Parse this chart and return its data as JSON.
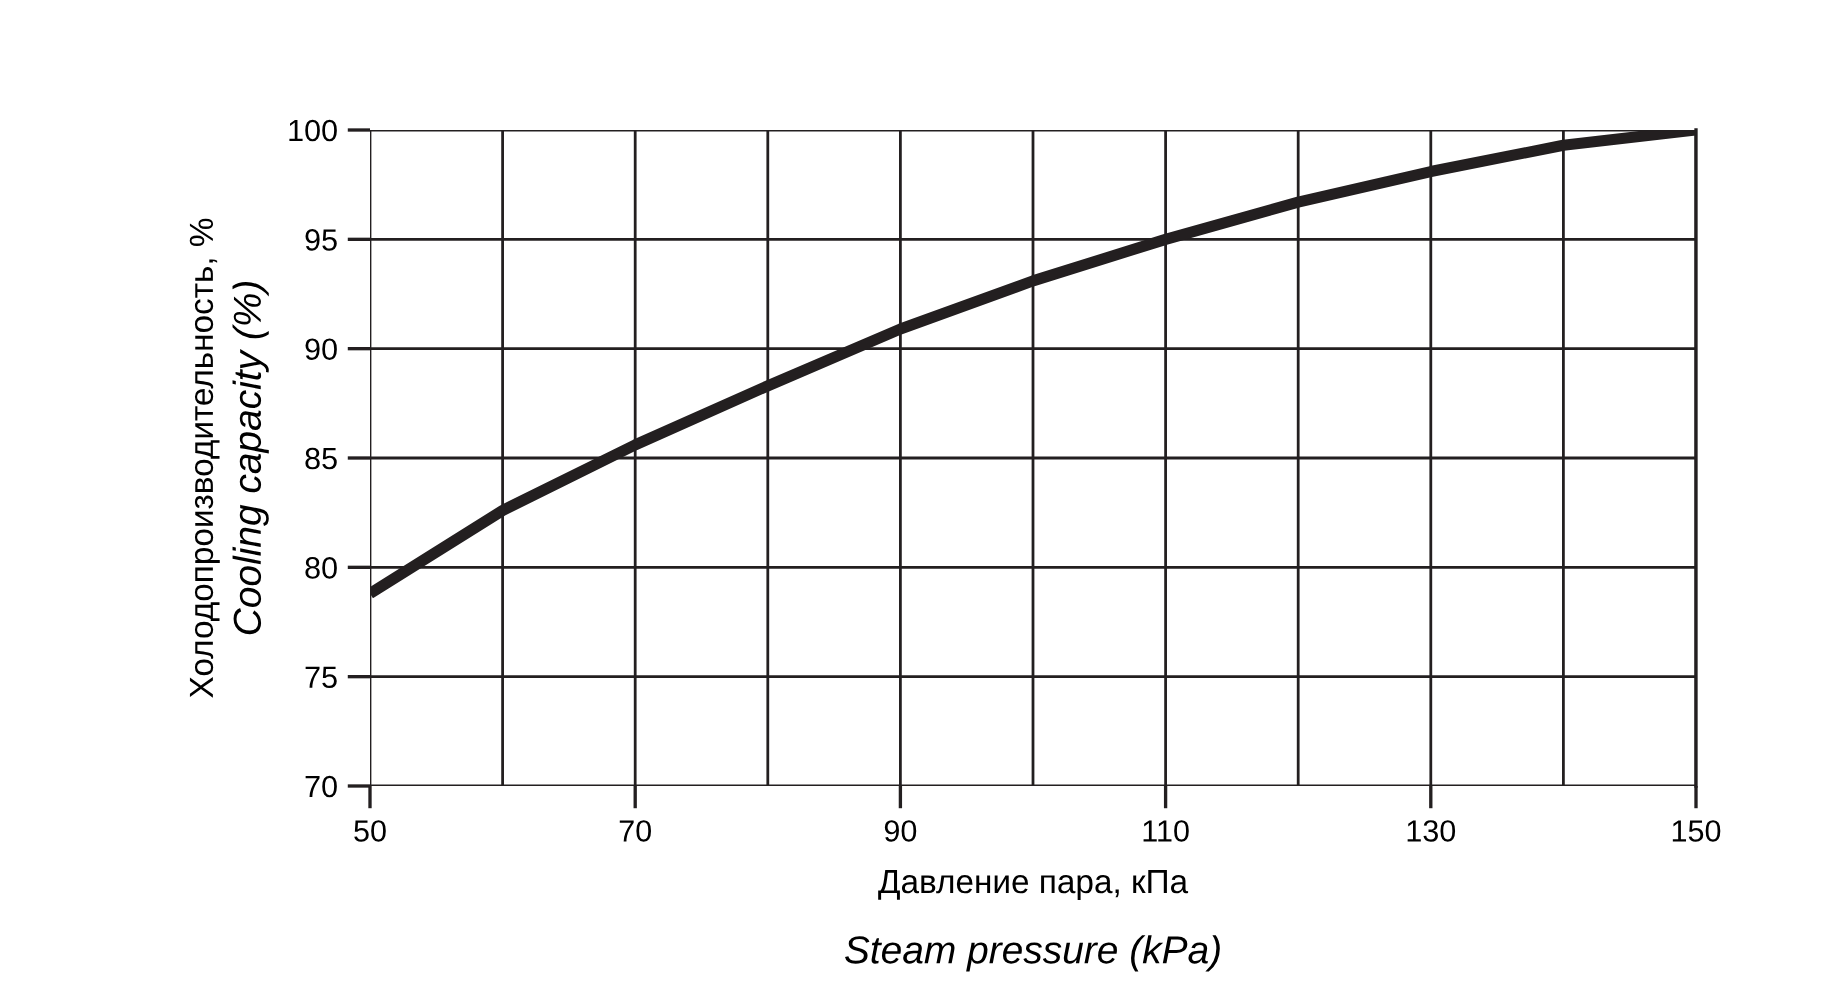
{
  "chart_data": {
    "type": "line",
    "xlabel": "Давление пара, кПа\nSteam pressure (kPa)",
    "ylabel": "Холодопроизводительность, %\nCooling capacity (%)",
    "x": [
      50,
      60,
      70,
      80,
      90,
      100,
      110,
      120,
      130,
      140,
      150
    ],
    "series": [
      {
        "color": "#231f20",
        "values": [
          78.8,
          82.6,
          85.6,
          88.3,
          90.9,
          93.1,
          95.0,
          96.7,
          98.1,
          99.3,
          100.0
        ]
      }
    ],
    "xlim": [
      50,
      150
    ],
    "xticks": [
      50,
      {
        "value": 60,
        "label": null
      },
      70,
      {
        "value": 80,
        "label": null
      },
      90,
      {
        "value": 100,
        "label": null
      },
      110,
      {
        "value": 120,
        "label": null
      },
      130,
      {
        "value": 140,
        "label": null
      },
      150
    ],
    "ylim": [
      70,
      100
    ],
    "yticks": [
      70,
      75,
      80,
      85,
      90,
      95,
      100
    ],
    "grid": true,
    "legend": false,
    "marker": "none",
    "line_style": "solid"
  }
}
